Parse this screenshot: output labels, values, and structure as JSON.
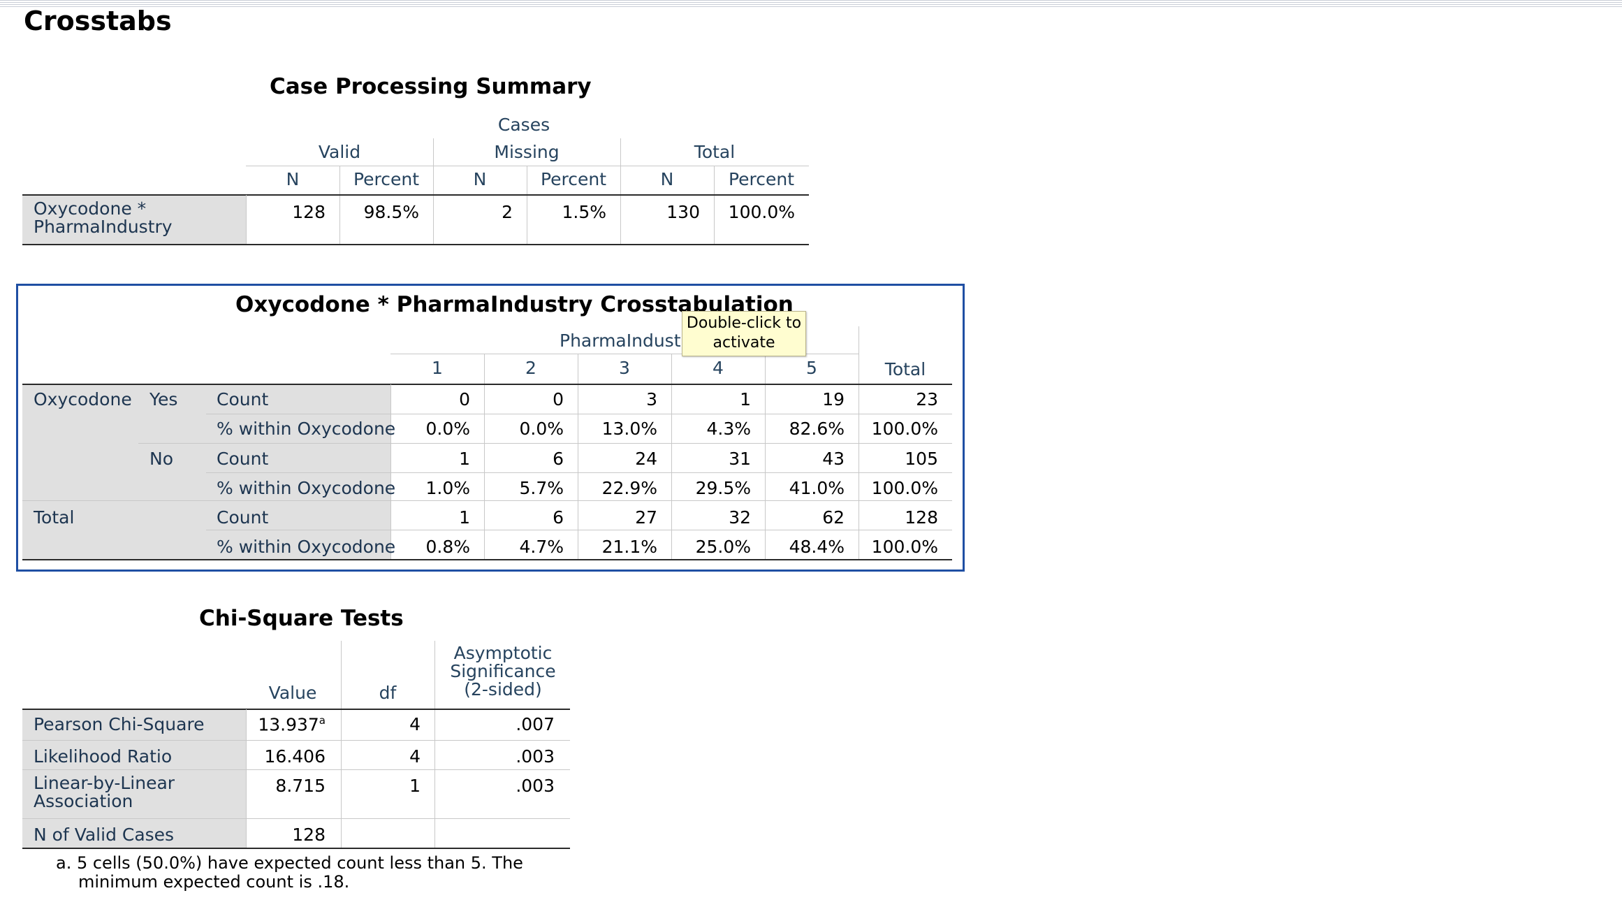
{
  "page": {
    "heading": "Crosstabs"
  },
  "case_summary": {
    "title": "Case Processing Summary",
    "cases_label": "Cases",
    "groups": [
      "Valid",
      "Missing",
      "Total"
    ],
    "subheaders": [
      "N",
      "Percent",
      "N",
      "Percent",
      "N",
      "Percent"
    ],
    "row_label_line1": "Oxycodone *",
    "row_label_line2": "PharmaIndustry",
    "values": [
      "128",
      "98.5%",
      "2",
      "1.5%",
      "130",
      "100.0%"
    ]
  },
  "crosstab": {
    "title": "Oxycodone * PharmaIndustry Crosstabulation",
    "col_group_label": "PharmaIndustry",
    "columns": [
      "1",
      "2",
      "3",
      "4",
      "5",
      "Total"
    ],
    "var_label": "Oxycodone",
    "total_label": "Total",
    "row_values": [
      {
        "group": "Yes",
        "stat": "Count",
        "values": [
          "0",
          "0",
          "3",
          "1",
          "19",
          "23"
        ]
      },
      {
        "group": "",
        "stat": "% within Oxycodone",
        "values": [
          "0.0%",
          "0.0%",
          "13.0%",
          "4.3%",
          "82.6%",
          "100.0%"
        ]
      },
      {
        "group": "No",
        "stat": "Count",
        "values": [
          "1",
          "6",
          "24",
          "31",
          "43",
          "105"
        ]
      },
      {
        "group": "",
        "stat": "% within Oxycodone",
        "values": [
          "1.0%",
          "5.7%",
          "22.9%",
          "29.5%",
          "41.0%",
          "100.0%"
        ]
      },
      {
        "group": "",
        "stat": "Count",
        "values": [
          "1",
          "6",
          "27",
          "32",
          "62",
          "128"
        ]
      },
      {
        "group": "",
        "stat": "% within Oxycodone",
        "values": [
          "0.8%",
          "4.7%",
          "21.1%",
          "25.0%",
          "48.4%",
          "100.0%"
        ]
      }
    ],
    "tooltip_line1": "Double-click to",
    "tooltip_line2": "activate"
  },
  "chi_square": {
    "title": "Chi-Square Tests",
    "col_value": "Value",
    "col_df": "df",
    "col_sig_line1": "Asymptotic",
    "col_sig_line2": "Significance",
    "col_sig_line3": "(2-sided)",
    "rows": [
      {
        "label": "Pearson Chi-Square",
        "value": "13.937",
        "sup": "a",
        "df": "4",
        "sig": ".007"
      },
      {
        "label": "Likelihood Ratio",
        "value": "16.406",
        "sup": "",
        "df": "4",
        "sig": ".003"
      },
      {
        "label_line1": "Linear-by-Linear",
        "label_line2": "Association",
        "value": "8.715",
        "sup": "",
        "df": "1",
        "sig": ".003"
      },
      {
        "label": "N of Valid Cases",
        "value": "128",
        "sup": "",
        "df": "",
        "sig": ""
      }
    ],
    "footnote_line1": "a. 5 cells (50.0%) have expected count less than 5. The",
    "footnote_line2": "minimum expected count is .18."
  }
}
